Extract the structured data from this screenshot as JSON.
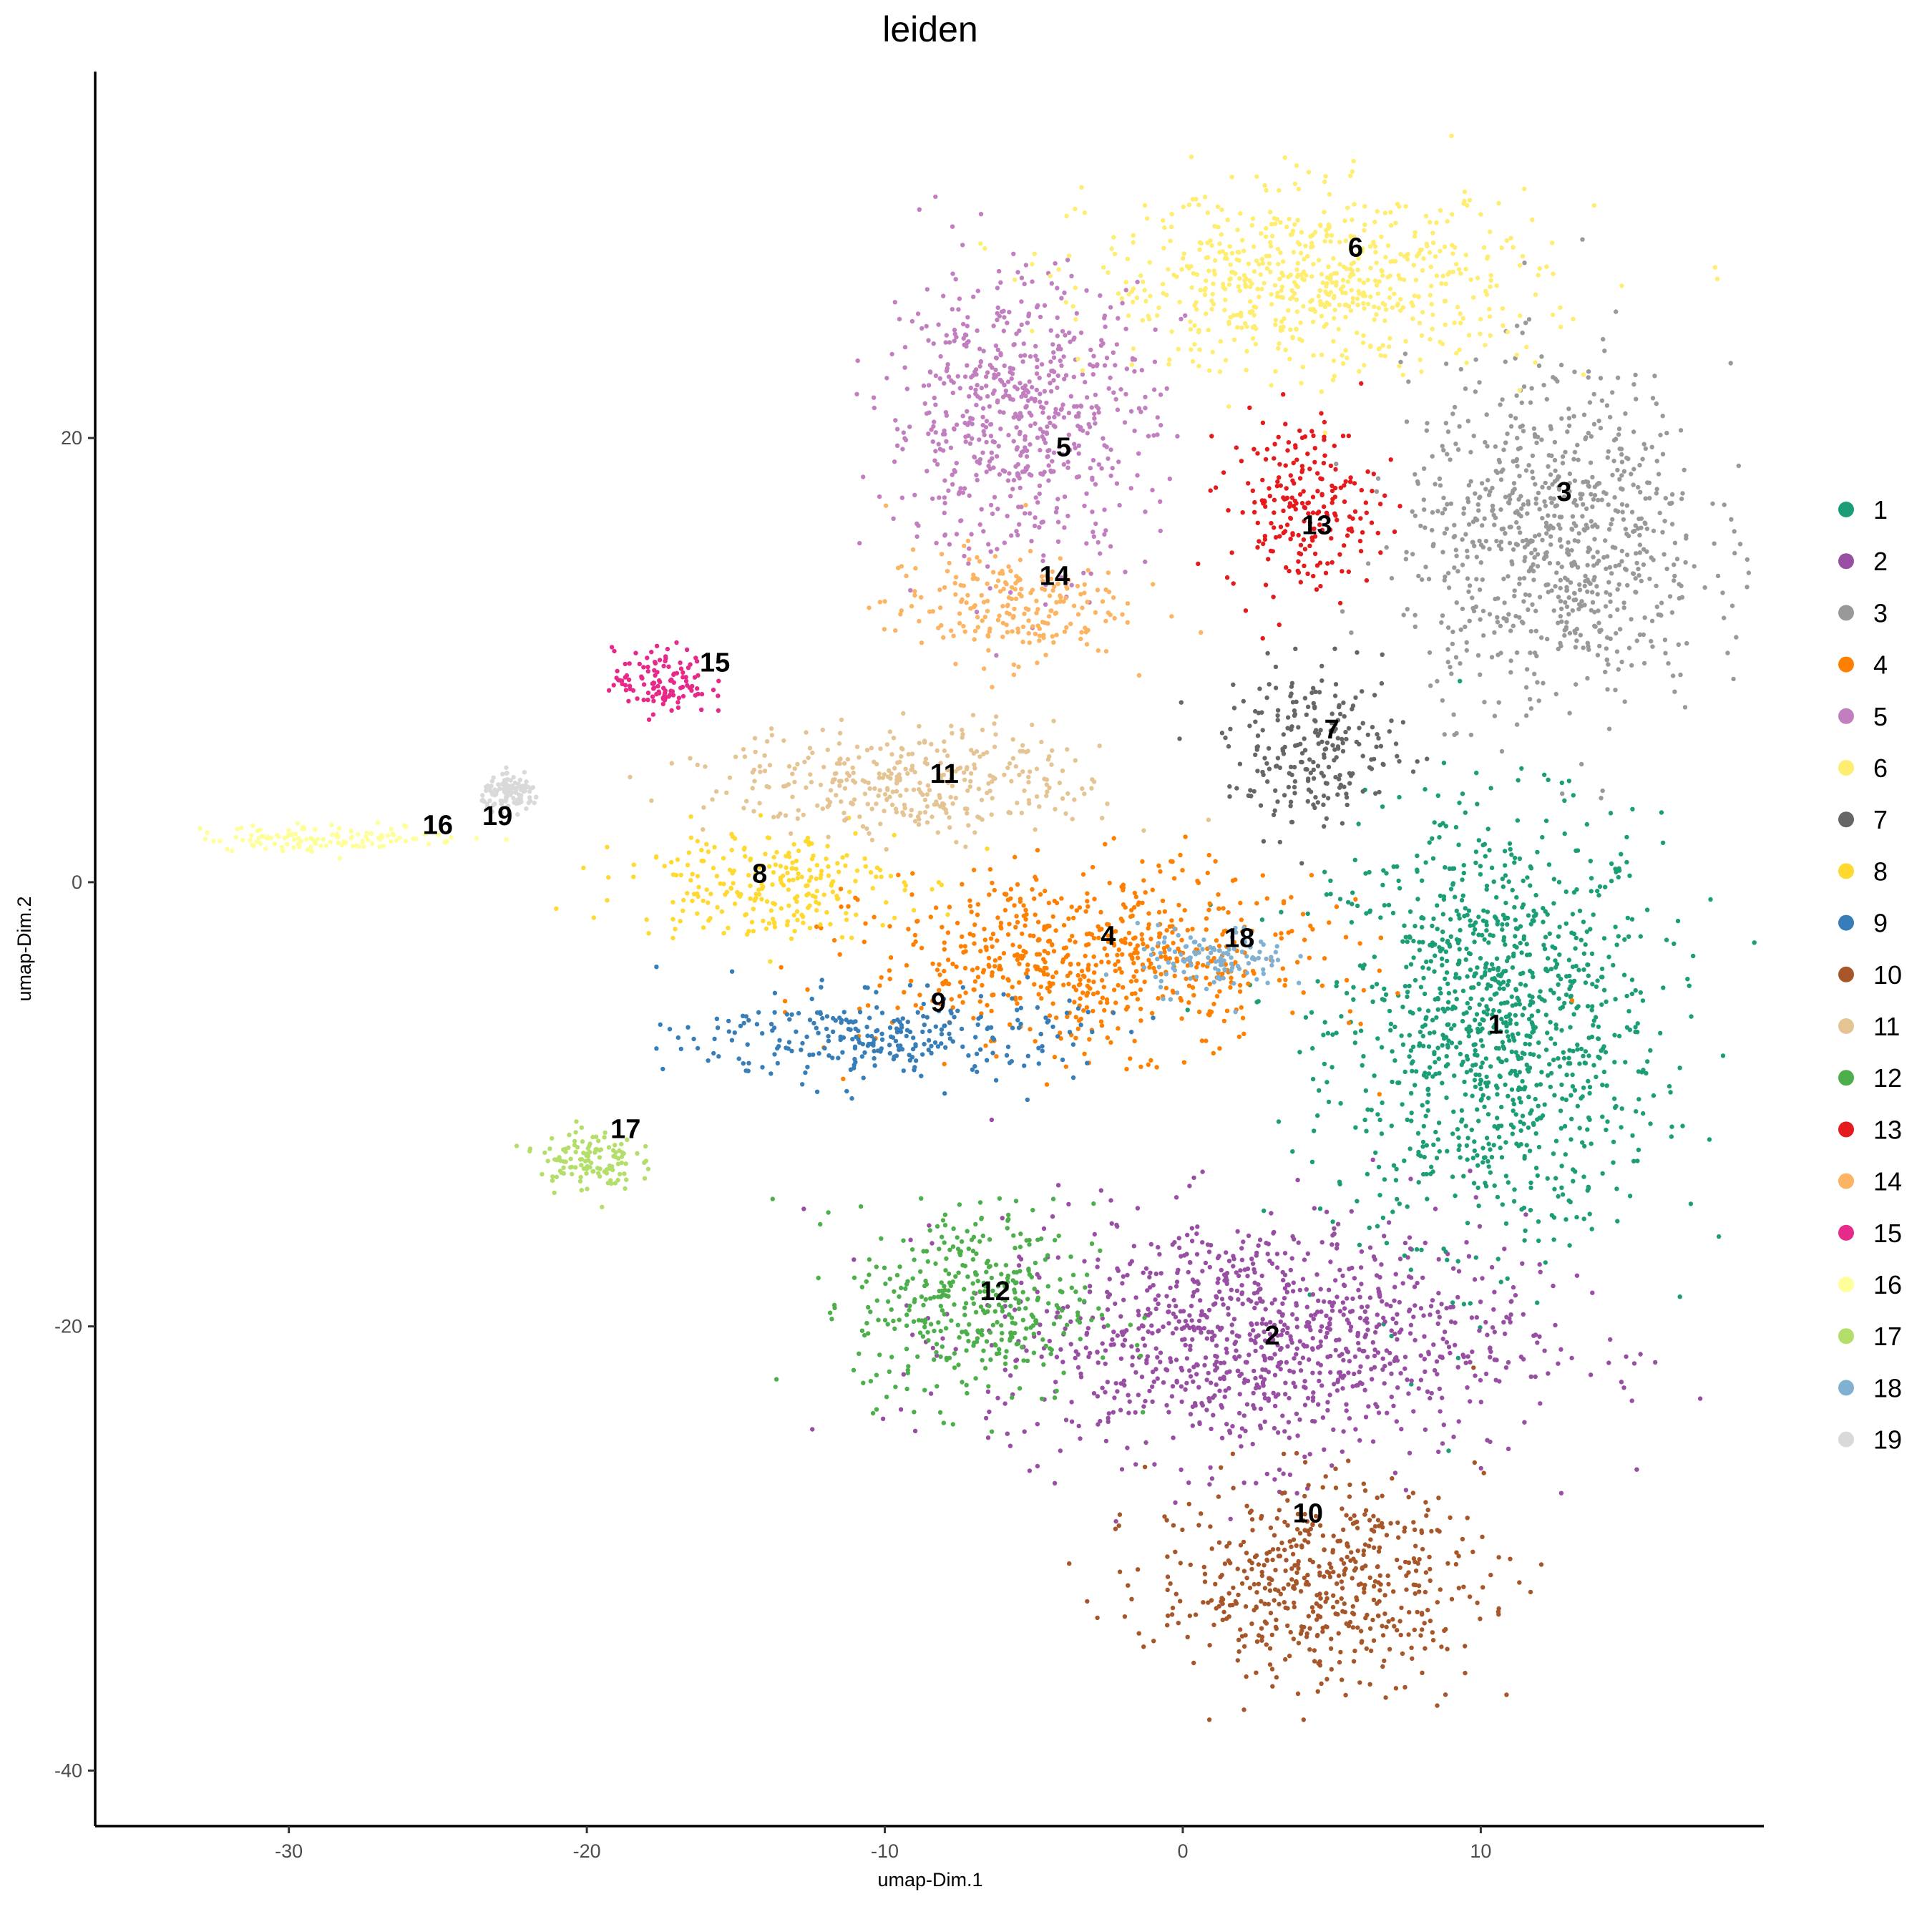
{
  "chart_data": {
    "type": "scatter",
    "title": "leiden",
    "xlabel": "umap-Dim.1",
    "ylabel": "umap-Dim.2",
    "xlim": [
      -36.5,
      19.5
    ],
    "ylim": [
      -42.5,
      36.5
    ],
    "xticks": [
      -30,
      -20,
      -10,
      0,
      10
    ],
    "yticks": [
      -40,
      -20,
      0,
      20
    ],
    "xtick_labels": [
      "-30",
      "-20",
      "-10",
      "0",
      "10"
    ],
    "ytick_labels": [
      "-40",
      "-20",
      "0",
      "20"
    ],
    "grid": false,
    "legend_position": "right",
    "legend_title": "",
    "clusters": [
      {
        "name": "1",
        "color": "#1B9E77",
        "center": [
          10.5,
          -6.5
        ],
        "spread": [
          5.5,
          9.5
        ],
        "label_pos": [
          10.5,
          -6.5
        ]
      },
      {
        "name": "2",
        "color": "#984EA3",
        "center": [
          2.5,
          -20.5
        ],
        "spread": [
          9.0,
          5.5
        ],
        "label_pos": [
          3.0,
          -20.5
        ]
      },
      {
        "name": "3",
        "color": "#999999",
        "center": [
          12.5,
          15.5
        ],
        "spread": [
          5.0,
          7.5
        ],
        "label_pos": [
          12.8,
          17.5
        ]
      },
      {
        "name": "4",
        "color": "#FF7F00",
        "center": [
          -3.0,
          -3.5
        ],
        "spread": [
          7.5,
          4.0
        ],
        "label_pos": [
          -2.5,
          -2.5
        ]
      },
      {
        "name": "5",
        "color": "#C27FC0",
        "center": [
          -5.5,
          21.0
        ],
        "spread": [
          4.5,
          6.5
        ],
        "label_pos": [
          -4.0,
          19.5
        ]
      },
      {
        "name": "6",
        "color": "#FFED6F",
        "center": [
          4.5,
          27.0
        ],
        "spread": [
          7.5,
          4.0
        ],
        "label_pos": [
          5.8,
          28.5
        ]
      },
      {
        "name": "7",
        "color": "#666666",
        "center": [
          4.5,
          6.0
        ],
        "spread": [
          3.0,
          3.5
        ],
        "label_pos": [
          5.0,
          6.8
        ]
      },
      {
        "name": "8",
        "color": "#FFD92F",
        "center": [
          -14.0,
          0.0
        ],
        "spread": [
          4.5,
          2.5
        ],
        "label_pos": [
          -14.2,
          0.3
        ]
      },
      {
        "name": "9",
        "color": "#377EB8",
        "center": [
          -10.0,
          -7.0
        ],
        "spread": [
          6.5,
          2.0
        ],
        "label_pos": [
          -8.2,
          -5.5
        ]
      },
      {
        "name": "10",
        "color": "#A65628",
        "center": [
          4.5,
          -31.5
        ],
        "spread": [
          5.5,
          4.5
        ],
        "label_pos": [
          4.2,
          -28.5
        ]
      },
      {
        "name": "11",
        "color": "#E5C494",
        "center": [
          -9.0,
          4.5
        ],
        "spread": [
          6.5,
          2.5
        ],
        "label_pos": [
          -8.0,
          4.8
        ]
      },
      {
        "name": "12",
        "color": "#4DAF4A",
        "center": [
          -7.0,
          -19.0
        ],
        "spread": [
          4.0,
          4.5
        ],
        "label_pos": [
          -6.3,
          -18.5
        ]
      },
      {
        "name": "13",
        "color": "#E41A1C",
        "center": [
          4.0,
          17.0
        ],
        "spread": [
          2.5,
          4.0
        ],
        "label_pos": [
          4.5,
          16.0
        ]
      },
      {
        "name": "14",
        "color": "#FDB462",
        "center": [
          -6.0,
          12.5
        ],
        "spread": [
          4.0,
          2.5
        ],
        "label_pos": [
          -4.3,
          13.7
        ]
      },
      {
        "name": "15",
        "color": "#E7298A",
        "center": [
          -17.5,
          9.0
        ],
        "spread": [
          1.6,
          1.5
        ],
        "label_pos": [
          -15.7,
          9.8
        ]
      },
      {
        "name": "16",
        "color": "#FFFF99",
        "center": [
          -28.5,
          2.0
        ],
        "spread": [
          4.5,
          0.6
        ],
        "label_pos": [
          -25.0,
          2.5
        ]
      },
      {
        "name": "17",
        "color": "#B3DE69",
        "center": [
          -20.0,
          -12.5
        ],
        "spread": [
          1.6,
          1.4
        ],
        "label_pos": [
          -18.7,
          -11.2
        ]
      },
      {
        "name": "18",
        "color": "#80B1D3",
        "center": [
          1.0,
          -3.5
        ],
        "spread": [
          2.5,
          1.5
        ],
        "label_pos": [
          1.9,
          -2.6
        ]
      },
      {
        "name": "19",
        "color": "#D9D9D9",
        "center": [
          -22.5,
          4.0
        ],
        "spread": [
          1.0,
          0.7
        ],
        "label_pos": [
          -23.0,
          2.9
        ]
      }
    ]
  }
}
